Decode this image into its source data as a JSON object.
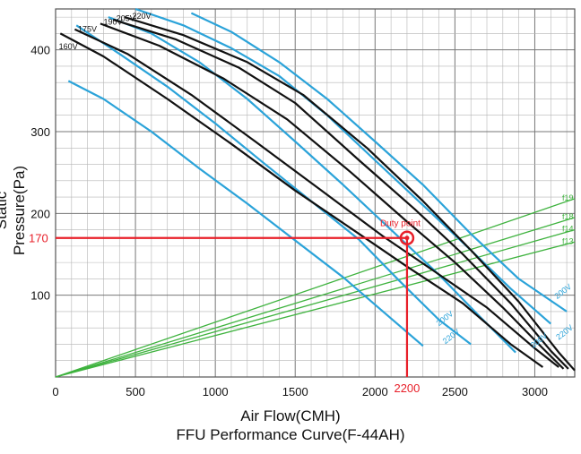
{
  "chart_data": {
    "type": "line",
    "title": "FFU Performance Curve(F-44AH)",
    "xlabel": "Air Flow(CMH)",
    "ylabel": "Static Pressure(Pa)",
    "xlim": [
      0,
      3250
    ],
    "ylim": [
      0,
      450
    ],
    "x_ticks": [
      0,
      500,
      1000,
      1500,
      2000,
      2500,
      3000
    ],
    "y_ticks": [
      100,
      200,
      300,
      400
    ],
    "grid": true,
    "colors": {
      "fan": "#111111",
      "blue": "#2ba3d9",
      "system": "#3fb33f",
      "duty": "#e8202a"
    },
    "fan_curves": [
      {
        "name": "160V",
        "values": [
          [
            30,
            420
          ],
          [
            300,
            392
          ],
          [
            700,
            340
          ],
          [
            1100,
            285
          ],
          [
            1500,
            228
          ],
          [
            1900,
            175
          ],
          [
            2200,
            135
          ],
          [
            2550,
            90
          ],
          [
            2850,
            40
          ],
          [
            3050,
            12
          ]
        ]
      },
      {
        "name": "175V",
        "values": [
          [
            120,
            425
          ],
          [
            450,
            395
          ],
          [
            850,
            345
          ],
          [
            1250,
            288
          ],
          [
            1650,
            230
          ],
          [
            2050,
            172
          ],
          [
            2350,
            132
          ],
          [
            2700,
            85
          ],
          [
            3000,
            35
          ],
          [
            3150,
            12
          ]
        ]
      },
      {
        "name": "190V",
        "values": [
          [
            280,
            432
          ],
          [
            650,
            405
          ],
          [
            1050,
            365
          ],
          [
            1450,
            315
          ],
          [
            1850,
            250
          ],
          [
            2200,
            190
          ],
          [
            2500,
            140
          ],
          [
            2800,
            85
          ],
          [
            3050,
            35
          ],
          [
            3180,
            10
          ]
        ]
      },
      {
        "name": "205V",
        "values": [
          [
            360,
            437
          ],
          [
            750,
            413
          ],
          [
            1150,
            378
          ],
          [
            1500,
            335
          ],
          [
            1900,
            265
          ],
          [
            2250,
            205
          ],
          [
            2550,
            150
          ],
          [
            2850,
            90
          ],
          [
            3100,
            32
          ],
          [
            3210,
            10
          ]
        ]
      },
      {
        "name": "220V",
        "values": [
          [
            430,
            440
          ],
          [
            800,
            418
          ],
          [
            1200,
            385
          ],
          [
            1550,
            345
          ],
          [
            1950,
            280
          ],
          [
            2300,
            215
          ],
          [
            2600,
            155
          ],
          [
            2900,
            92
          ],
          [
            3150,
            30
          ],
          [
            3250,
            8
          ]
        ]
      }
    ],
    "blue_curves": [
      {
        "label": "",
        "values": [
          [
            80,
            362
          ],
          [
            300,
            340
          ],
          [
            600,
            300
          ],
          [
            900,
            255
          ],
          [
            1200,
            212
          ],
          [
            1500,
            167
          ],
          [
            1800,
            122
          ],
          [
            2050,
            80
          ],
          [
            2300,
            38
          ]
        ]
      },
      {
        "label": "",
        "values": [
          [
            130,
            430
          ],
          [
            400,
            395
          ],
          [
            700,
            355
          ],
          [
            1000,
            310
          ],
          [
            1300,
            262
          ],
          [
            1600,
            215
          ],
          [
            1900,
            168
          ],
          [
            2150,
            118
          ],
          [
            2400,
            70
          ],
          [
            2600,
            40
          ]
        ]
      },
      {
        "label": "",
        "values": [
          [
            330,
            440
          ],
          [
            600,
            420
          ],
          [
            900,
            385
          ],
          [
            1200,
            340
          ],
          [
            1500,
            288
          ],
          [
            1800,
            235
          ],
          [
            2100,
            180
          ],
          [
            2400,
            125
          ],
          [
            2650,
            75
          ],
          [
            2880,
            30
          ]
        ]
      },
      {
        "label": "",
        "values": [
          [
            500,
            450
          ],
          [
            800,
            430
          ],
          [
            1100,
            402
          ],
          [
            1400,
            368
          ],
          [
            1700,
            320
          ],
          [
            2000,
            265
          ],
          [
            2300,
            210
          ],
          [
            2600,
            155
          ],
          [
            2850,
            108
          ],
          [
            3100,
            65
          ]
        ]
      },
      {
        "label": "",
        "values": [
          [
            850,
            445
          ],
          [
            1100,
            422
          ],
          [
            1400,
            385
          ],
          [
            1700,
            340
          ],
          [
            2000,
            288
          ],
          [
            2300,
            235
          ],
          [
            2600,
            175
          ],
          [
            2900,
            120
          ],
          [
            3200,
            80
          ]
        ]
      }
    ],
    "system_curves": [
      {
        "label": "f19",
        "values": [
          [
            0,
            0
          ],
          [
            3250,
            218
          ]
        ]
      },
      {
        "label": "f18",
        "values": [
          [
            0,
            0
          ],
          [
            3250,
            195
          ]
        ]
      },
      {
        "label": "f14",
        "values": [
          [
            0,
            0
          ],
          [
            3250,
            180
          ]
        ]
      },
      {
        "label": "f13",
        "values": [
          [
            0,
            0
          ],
          [
            3250,
            165
          ]
        ]
      }
    ],
    "curve_labels": [
      {
        "text": "160V",
        "x": 20,
        "y": 401
      },
      {
        "text": "175V",
        "x": 140,
        "y": 422
      },
      {
        "text": "190V",
        "x": 300,
        "y": 431
      },
      {
        "text": "205V",
        "x": 380,
        "y": 435
      },
      {
        "text": "220V",
        "x": 480,
        "y": 438
      },
      {
        "text": "200V",
        "x": 2400,
        "y": 62
      },
      {
        "text": "220V",
        "x": 2440,
        "y": 40
      },
      {
        "text": "200V",
        "x": 2990,
        "y": 35
      },
      {
        "text": "220V",
        "x": 3150,
        "y": 45
      },
      {
        "text": "200V",
        "x": 3140,
        "y": 95
      }
    ],
    "duty_point": {
      "label": "Duty point",
      "x": 2200,
      "y": 170,
      "x_value_label": "2200",
      "y_value_label": "170"
    }
  }
}
